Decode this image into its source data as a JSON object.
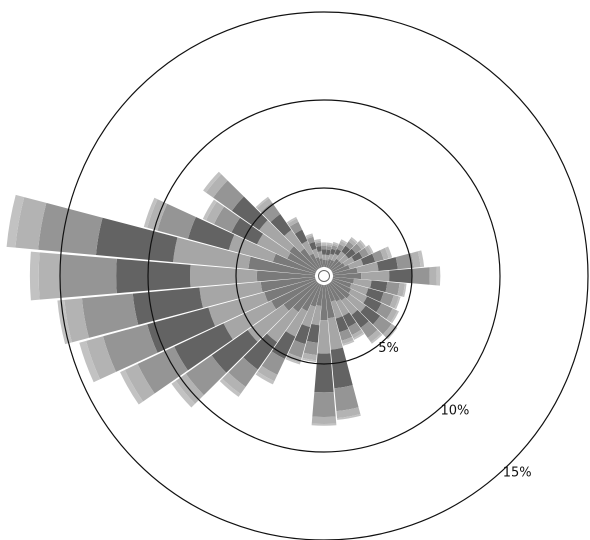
{
  "chart_data": {
    "type": "wind-rose",
    "radial_axis": {
      "unit": "%",
      "rings": [
        5,
        10,
        15
      ],
      "ring_labels": [
        "5%",
        "10%",
        "15%"
      ],
      "max": 16
    },
    "direction_count": 36,
    "direction_start_deg": 0,
    "direction_step_deg": 10,
    "band_colors": [
      "#7a7a7a",
      "#a6a6a6",
      "#636363",
      "#959595",
      "#b3b3b3",
      "#c2c2c2"
    ],
    "frequencies_by_direction": [
      [
        0.4,
        0.3,
        0.3,
        0.2,
        0.1,
        0.1
      ],
      [
        0.4,
        0.3,
        0.3,
        0.2,
        0.1,
        0.1
      ],
      [
        0.5,
        0.3,
        0.3,
        0.2,
        0.1,
        0.1
      ],
      [
        0.5,
        0.4,
        0.3,
        0.3,
        0.2,
        0.1
      ],
      [
        0.7,
        0.5,
        0.4,
        0.3,
        0.2,
        0.1
      ],
      [
        0.7,
        0.5,
        0.5,
        0.4,
        0.2,
        0.1
      ],
      [
        0.8,
        0.6,
        0.5,
        0.4,
        0.2,
        0.1
      ],
      [
        1.0,
        0.8,
        0.7,
        0.5,
        0.3,
        0.2
      ],
      [
        1.4,
        1.2,
        1.1,
        0.9,
        0.4,
        0.2
      ],
      [
        1.6,
        1.6,
        1.3,
        1.0,
        0.4,
        0.2
      ],
      [
        1.2,
        1.0,
        0.9,
        0.7,
        0.3,
        0.1
      ],
      [
        1.1,
        1.0,
        0.9,
        0.6,
        0.3,
        0.1
      ],
      [
        1.2,
        1.0,
        0.9,
        0.7,
        0.3,
        0.1
      ],
      [
        1.3,
        1.1,
        1.0,
        0.8,
        0.3,
        0.1
      ],
      [
        1.2,
        1.0,
        0.9,
        0.7,
        0.3,
        0.1
      ],
      [
        1.1,
        0.9,
        0.7,
        0.5,
        0.2,
        0.1
      ],
      [
        1.0,
        1.0,
        0.8,
        0.5,
        0.2,
        0.1
      ],
      [
        1.9,
        1.8,
        2.2,
        1.3,
        0.4,
        0.1
      ],
      [
        2.0,
        1.9,
        2.2,
        1.4,
        0.4,
        0.1
      ],
      [
        1.2,
        1.1,
        1.0,
        0.7,
        0.3,
        0.1
      ],
      [
        1.3,
        1.2,
        1.0,
        0.8,
        0.3,
        0.1
      ],
      [
        1.7,
        1.6,
        1.4,
        1.0,
        0.4,
        0.2
      ],
      [
        2.0,
        2.1,
        1.9,
        1.2,
        0.5,
        0.2
      ],
      [
        2.3,
        2.5,
        2.5,
        1.8,
        0.7,
        0.3
      ],
      [
        2.8,
        3.0,
        3.1,
        2.3,
        0.8,
        0.3
      ],
      [
        3.0,
        3.3,
        3.6,
        2.6,
        1.0,
        0.4
      ],
      [
        3.1,
        3.5,
        3.8,
        2.9,
        1.0,
        0.4
      ],
      [
        3.3,
        3.8,
        4.2,
        3.2,
        1.2,
        0.5
      ],
      [
        3.8,
        4.3,
        4.4,
        3.3,
        1.3,
        0.5
      ],
      [
        2.5,
        2.6,
        2.4,
        1.8,
        0.6,
        0.2
      ],
      [
        1.8,
        1.9,
        1.6,
        1.1,
        0.5,
        0.2
      ],
      [
        1.9,
        2.1,
        1.9,
        1.3,
        0.5,
        0.2
      ],
      [
        1.4,
        1.3,
        1.1,
        0.8,
        0.3,
        0.1
      ],
      [
        0.9,
        0.8,
        0.7,
        0.5,
        0.2,
        0.1
      ],
      [
        0.6,
        0.5,
        0.4,
        0.3,
        0.1,
        0.1
      ],
      [
        0.5,
        0.4,
        0.3,
        0.2,
        0.1,
        0.1
      ]
    ]
  }
}
